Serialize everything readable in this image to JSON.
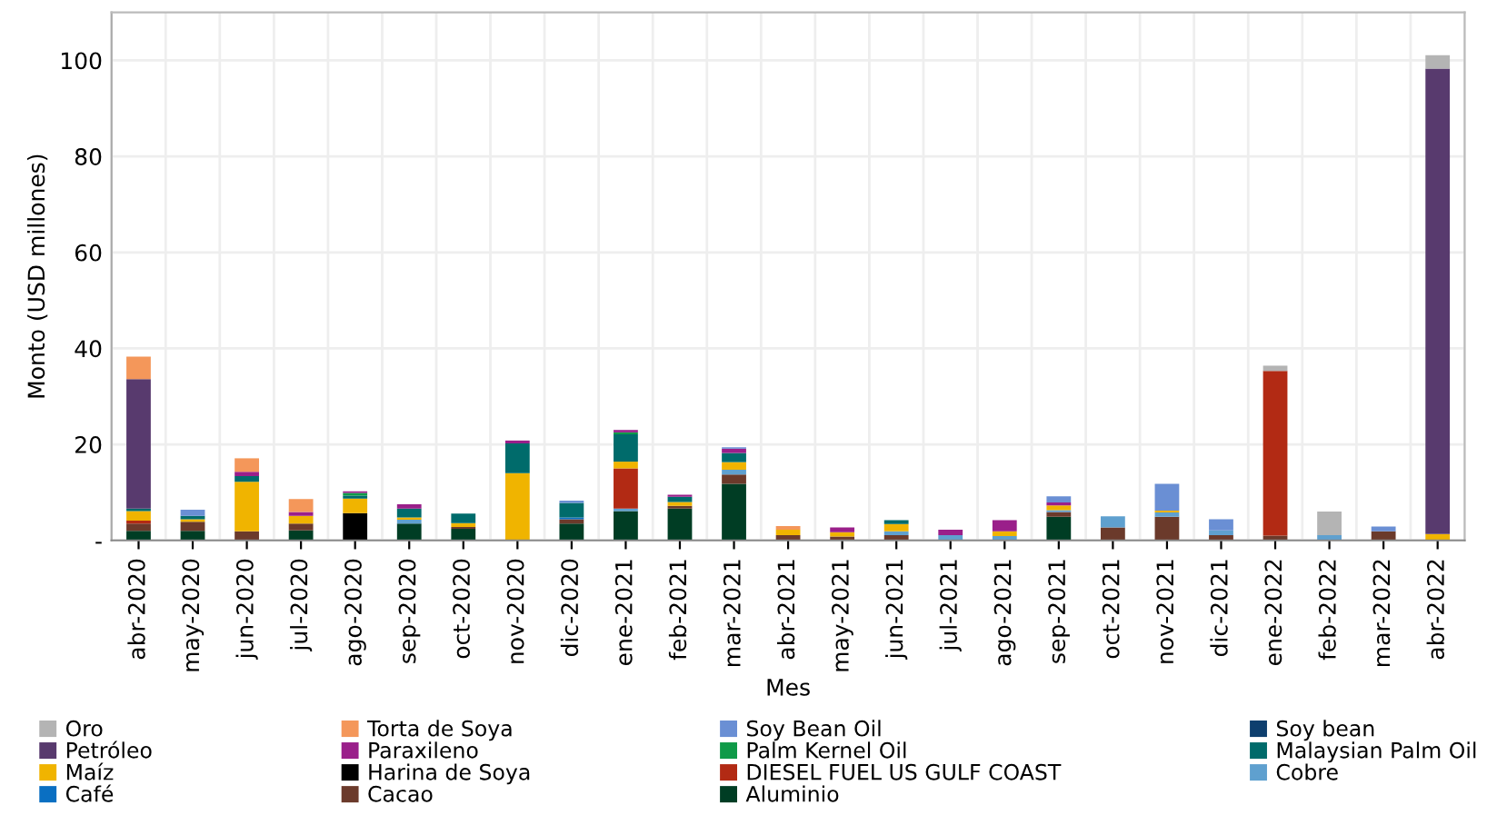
{
  "chart_data": {
    "type": "bar",
    "stacked": true,
    "xlabel": "Mes",
    "ylabel": "Monto (USD millones)",
    "categories": [
      "abr-2020",
      "may-2020",
      "jun-2020",
      "jul-2020",
      "ago-2020",
      "sep-2020",
      "oct-2020",
      "nov-2020",
      "dic-2020",
      "ene-2021",
      "feb-2021",
      "mar-2021",
      "abr-2021",
      "may-2021",
      "jun-2021",
      "jul-2021",
      "ago-2021",
      "sep-2021",
      "oct-2021",
      "nov-2021",
      "dic-2021",
      "ene-2022",
      "feb-2022",
      "mar-2022",
      "abr-2022"
    ],
    "ylim": [
      0,
      110
    ],
    "yticks": [
      {
        "value": 0,
        "label": "-"
      },
      20,
      40,
      60,
      80,
      100
    ],
    "grid": true,
    "legend": "bottom",
    "series": [
      {
        "name": "Aluminio",
        "color": "#003d24",
        "values": [
          2.0,
          2.0,
          0,
          2.1,
          0,
          3.5,
          2.4,
          0,
          3.5,
          6.1,
          6.6,
          11.8,
          0,
          0,
          0,
          0,
          0,
          4.9,
          0,
          0,
          0,
          0,
          0,
          0,
          0
        ]
      },
      {
        "name": "Cacao",
        "color": "#6b3a2b",
        "values": [
          1.5,
          1.9,
          1.9,
          1.4,
          0,
          0,
          0.4,
          0,
          0.9,
          0,
          0.6,
          1.9,
          1.1,
          0.8,
          1.1,
          0,
          0,
          1.0,
          2.7,
          4.9,
          1.1,
          1.0,
          0,
          1.9,
          0
        ]
      },
      {
        "name": "Café",
        "color": "#0a6fc2",
        "values": [
          0,
          0,
          0,
          0,
          0,
          0,
          0,
          0,
          0.4,
          0,
          0,
          0,
          0,
          0,
          0,
          0,
          0,
          0,
          0,
          0,
          0,
          0,
          0,
          0,
          0
        ]
      },
      {
        "name": "Cobre",
        "color": "#5fa0cf",
        "values": [
          0,
          0,
          0,
          0,
          0,
          0.8,
          0,
          0,
          0,
          0.5,
          0,
          1.0,
          0,
          0,
          0.8,
          1.1,
          0.9,
          0.4,
          2.3,
          0.9,
          1.0,
          0,
          1.1,
          0,
          0
        ]
      },
      {
        "name": "DIESEL FUEL US GULF COAST",
        "color": "#b22a14",
        "values": [
          0.6,
          0,
          0,
          0,
          0,
          0,
          0,
          0,
          0,
          8.4,
          0,
          0,
          0,
          0,
          0,
          0,
          0,
          0,
          0,
          0,
          0,
          34.3,
          0,
          0,
          0
        ]
      },
      {
        "name": "Harina de Soya",
        "color": "#000000",
        "values": [
          0,
          0,
          0,
          0,
          5.7,
          0,
          0,
          0,
          0,
          0,
          0,
          0,
          0,
          0,
          0,
          0,
          0,
          0,
          0,
          0,
          0,
          0,
          0,
          0,
          0
        ]
      },
      {
        "name": "Maíz",
        "color": "#f0b400",
        "values": [
          2.0,
          0.5,
          10.3,
          1.6,
          3.0,
          0.5,
          0.8,
          14.0,
          0,
          1.4,
          0.8,
          1.6,
          1.1,
          0.9,
          1.5,
          0,
          1.0,
          1.0,
          0,
          0.4,
          0,
          0,
          0,
          0,
          1.3
        ]
      },
      {
        "name": "Malaysian Palm Oil",
        "color": "#006b6b",
        "values": [
          0.5,
          0.7,
          1.2,
          0,
          0.6,
          1.8,
          2.0,
          6.2,
          3.0,
          5.7,
          1.1,
          1.9,
          0,
          0,
          0.8,
          0,
          0,
          0,
          0,
          0,
          0,
          0,
          0,
          0,
          0
        ]
      },
      {
        "name": "Palm Kernel Oil",
        "color": "#0f9a48",
        "values": [
          0,
          0,
          0,
          0,
          0.6,
          0,
          0,
          0,
          0,
          0.4,
          0,
          0,
          0,
          0,
          0,
          0,
          0,
          0,
          0,
          0,
          0,
          0,
          0,
          0,
          0
        ]
      },
      {
        "name": "Paraxileno",
        "color": "#9a1f8a",
        "values": [
          0,
          0,
          0.9,
          0.8,
          0.3,
          0.9,
          0,
          0.6,
          0,
          0.5,
          0.4,
          0.9,
          0,
          1.0,
          0,
          1.1,
          2.3,
          0.6,
          0,
          0,
          0,
          0,
          0,
          0,
          0
        ]
      },
      {
        "name": "Petróleo",
        "color": "#583a6e",
        "values": [
          27.0,
          0,
          0,
          0,
          0,
          0,
          0,
          0,
          0,
          0,
          0,
          0,
          0,
          0,
          0,
          0,
          0,
          0,
          0,
          0,
          0,
          0,
          0,
          0,
          97.0
        ]
      },
      {
        "name": "Soy bean",
        "color": "#0e3f6e",
        "values": [
          0,
          0,
          0,
          0,
          0,
          0,
          0,
          0,
          0,
          0,
          0,
          0,
          0,
          0,
          0,
          0,
          0,
          0,
          0,
          0,
          0,
          0,
          0,
          0,
          0
        ]
      },
      {
        "name": "Soy Bean Oil",
        "color": "#6a8fd4",
        "values": [
          0,
          1.3,
          0,
          0,
          0,
          0,
          0,
          0,
          0.5,
          0,
          0,
          0.3,
          0,
          0,
          0,
          0,
          0,
          1.3,
          0,
          5.6,
          2.3,
          0,
          0,
          1.0,
          0
        ]
      },
      {
        "name": "Torta de Soya",
        "color": "#f4975a",
        "values": [
          4.7,
          0,
          2.8,
          2.7,
          0,
          0,
          0,
          0,
          0,
          0,
          0,
          0,
          0.8,
          0,
          0,
          0,
          0,
          0,
          0,
          0,
          0,
          0,
          0,
          0,
          0
        ]
      },
      {
        "name": "Oro",
        "color": "#b4b4b4",
        "values": [
          0,
          0,
          0,
          0,
          0,
          0,
          0,
          0,
          0,
          0,
          0,
          0,
          0,
          0,
          0,
          0,
          0,
          0,
          0,
          0,
          0,
          1.1,
          4.9,
          0,
          2.8
        ]
      }
    ]
  }
}
